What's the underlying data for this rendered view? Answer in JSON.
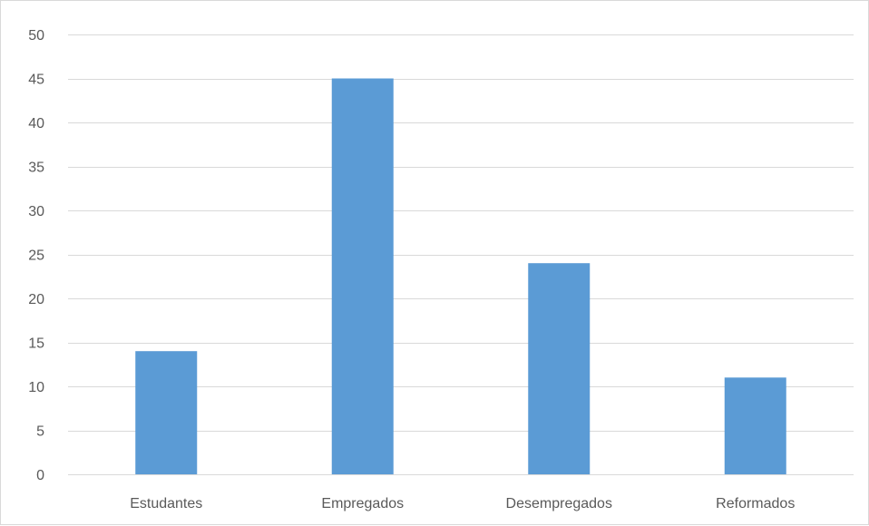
{
  "chart_data": {
    "type": "bar",
    "title": "",
    "xlabel": "",
    "ylabel": "",
    "categories": [
      "Estudantes",
      "Empregados",
      "Desempregados",
      "Reformados"
    ],
    "values": [
      14,
      45,
      24,
      11
    ],
    "ylim": [
      0,
      50
    ],
    "yticks": [
      0,
      5,
      10,
      15,
      20,
      25,
      30,
      35,
      40,
      45,
      50
    ],
    "grid": true,
    "legend": "none",
    "bar_color": "#5b9bd5",
    "grid_color": "#d9d9d9"
  }
}
